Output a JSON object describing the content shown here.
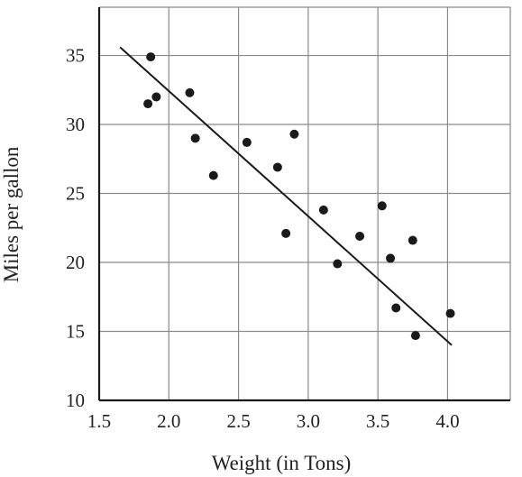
{
  "chart_data": {
    "type": "scatter",
    "title": "",
    "xlabel": "Weight (in Tons)",
    "ylabel": "Miles per gallon",
    "xlim": [
      1.5,
      4.45
    ],
    "ylim": [
      10,
      38.5
    ],
    "xticks": [
      1.5,
      2.0,
      2.5,
      3.0,
      3.5,
      4.0
    ],
    "xtick_labels": [
      "1.5",
      "2.0",
      "2.5",
      "3.0",
      "3.5",
      "4.0"
    ],
    "yticks": [
      10,
      15,
      20,
      25,
      30,
      35
    ],
    "ytick_labels": [
      "10",
      "15",
      "20",
      "25",
      "30",
      "35"
    ],
    "grid": true,
    "points": [
      {
        "x": 1.87,
        "y": 34.9
      },
      {
        "x": 1.85,
        "y": 31.5
      },
      {
        "x": 1.91,
        "y": 32.0
      },
      {
        "x": 2.15,
        "y": 32.3
      },
      {
        "x": 2.19,
        "y": 29.0
      },
      {
        "x": 2.32,
        "y": 26.3
      },
      {
        "x": 2.56,
        "y": 28.7
      },
      {
        "x": 2.78,
        "y": 26.9
      },
      {
        "x": 2.84,
        "y": 22.1
      },
      {
        "x": 2.9,
        "y": 29.3
      },
      {
        "x": 3.11,
        "y": 23.8
      },
      {
        "x": 3.21,
        "y": 19.9
      },
      {
        "x": 3.37,
        "y": 21.9
      },
      {
        "x": 3.53,
        "y": 24.1
      },
      {
        "x": 3.59,
        "y": 20.3
      },
      {
        "x": 3.63,
        "y": 16.7
      },
      {
        "x": 3.75,
        "y": 21.6
      },
      {
        "x": 3.77,
        "y": 14.7
      },
      {
        "x": 4.02,
        "y": 16.3
      }
    ],
    "trend_line": {
      "x": [
        1.65,
        4.03
      ],
      "y": [
        35.6,
        14.0
      ]
    }
  }
}
